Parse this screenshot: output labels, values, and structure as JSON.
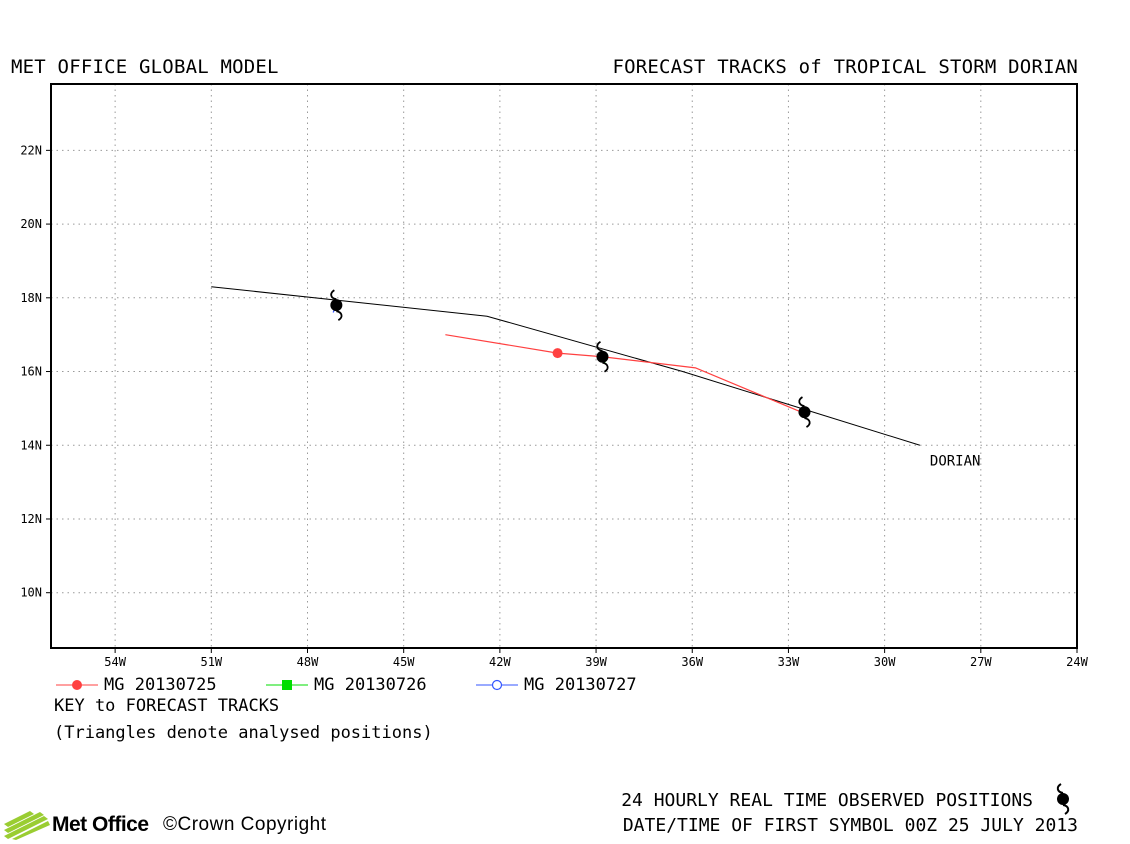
{
  "header": {
    "left_title": "MET OFFICE GLOBAL MODEL",
    "right_title": "FORECAST TRACKS of TROPICAL STORM DORIAN"
  },
  "chart_data": {
    "type": "line",
    "x_unit": "degrees longitude (negative = W)",
    "y_unit": "degrees latitude (N)",
    "xlim": [
      -56,
      -24
    ],
    "ylim": [
      8.5,
      23.8
    ],
    "x_ticks": [
      -54,
      -51,
      -48,
      -45,
      -42,
      -39,
      -36,
      -33,
      -30,
      -27,
      -24
    ],
    "x_tick_labels": [
      "54W",
      "51W",
      "48W",
      "45W",
      "42W",
      "39W",
      "36W",
      "33W",
      "30W",
      "27W",
      "24W"
    ],
    "y_ticks": [
      10,
      12,
      14,
      16,
      18,
      20,
      22
    ],
    "y_tick_labels": [
      "10N",
      "12N",
      "14N",
      "16N",
      "18N",
      "20N",
      "22N"
    ],
    "grid": true,
    "observed_track": {
      "label": "DORIAN",
      "color": "#000000",
      "points": [
        [
          -28.9,
          14.0
        ],
        [
          -36.3,
          16.0
        ],
        [
          -42.4,
          17.5
        ],
        [
          -51.0,
          18.3
        ]
      ]
    },
    "observed_symbols": [
      [
        -32.5,
        14.9
      ],
      [
        -38.8,
        16.4
      ],
      [
        -47.1,
        17.8
      ]
    ],
    "series": [
      {
        "name": "MG 20130725",
        "color": "#ff4040",
        "marker": "filled-circle",
        "points": [
          [
            -32.6,
            14.9
          ],
          [
            -35.9,
            16.1
          ],
          [
            -38.8,
            16.4
          ],
          [
            -40.2,
            16.5
          ],
          [
            -43.7,
            17.0
          ]
        ],
        "marker_points": [
          [
            -40.2,
            16.5
          ]
        ]
      },
      {
        "name": "MG 20130726",
        "color": "#00dd00",
        "marker": "filled-square",
        "points": [
          [
            -38.7,
            16.2
          ],
          [
            -38.8,
            16.35
          ]
        ],
        "marker_points": []
      },
      {
        "name": "MG 20130727",
        "color": "#3355ff",
        "marker": "open-circle",
        "points": [
          [
            -47.2,
            17.6
          ],
          [
            -47.1,
            17.8
          ]
        ],
        "marker_points": []
      }
    ]
  },
  "legend": {
    "key_title": "KEY to FORECAST TRACKS",
    "note": "(Triangles denote analysed positions)"
  },
  "footer": {
    "observed_positions": "24 HOURLY REAL TIME OBSERVED POSITIONS",
    "datetime": "DATE/TIME OF FIRST SYMBOL 00Z 25 JULY 2013",
    "logo_text": "Met Office",
    "copyright": "©Crown Copyright"
  }
}
